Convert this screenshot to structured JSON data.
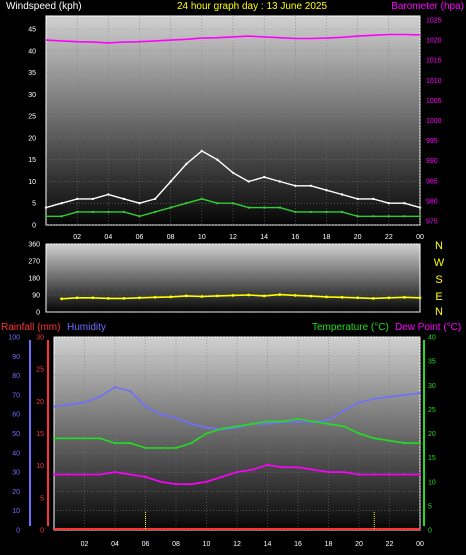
{
  "header": {
    "windspeed_label": "Windspeed (kph)",
    "title": "24 hour graph day : 13 June 2025",
    "barometer_label": "Barometer (hpa)"
  },
  "wind_dir_letters": [
    "N",
    "W",
    "S",
    "E",
    "N"
  ],
  "bottom_header": {
    "rainfall_label": "Rainfall (mm)",
    "humidity_label": "Humidity",
    "temperature_label": "Temperature (°C)",
    "dewpoint_label": "Dew Point (°C)"
  },
  "colors": {
    "windspeed": "#ffffff",
    "wind_avg": "#33cc33",
    "barometer": "#ff00ff",
    "title": "#ffff00",
    "wind_dir": "#ffff00",
    "rainfall": "#ff3333",
    "humidity": "#6f6fff",
    "temperature": "#22dd22",
    "dewpoint": "#ff00ff"
  },
  "chart_data": [
    {
      "type": "line",
      "xlabel": "",
      "x_ticks": [
        "02",
        "04",
        "06",
        "08",
        "10",
        "12",
        "14",
        "16",
        "18",
        "20",
        "22",
        "00"
      ],
      "y_left_label": "Windspeed (kph)",
      "y_left_ticks": [
        0,
        5,
        10,
        15,
        20,
        25,
        30,
        35,
        40,
        45
      ],
      "y_left_lim": [
        0,
        48
      ],
      "y_right_label": "Barometer (hpa)",
      "y_right_ticks": [
        975,
        980,
        985,
        990,
        995,
        1000,
        1005,
        1010,
        1015,
        1020,
        1025
      ],
      "y_right_lim": [
        974,
        1026
      ],
      "x_hours": [
        0,
        1,
        2,
        3,
        4,
        5,
        6,
        7,
        8,
        9,
        10,
        11,
        12,
        13,
        14,
        15,
        16,
        17,
        18,
        19,
        20,
        21,
        22,
        23,
        24
      ],
      "series": [
        {
          "name": "Windspeed (kph)",
          "axis": "left",
          "values": [
            4,
            5,
            6,
            6,
            7,
            6,
            5,
            6,
            10,
            14,
            17,
            15,
            12,
            10,
            11,
            10,
            9,
            9,
            8,
            7,
            6,
            6,
            5,
            5,
            4
          ]
        },
        {
          "name": "",
          "axis": "left",
          "values": [
            2,
            2,
            3,
            3,
            3,
            3,
            2,
            3,
            4,
            5,
            6,
            5,
            5,
            4,
            4,
            4,
            3,
            3,
            3,
            3,
            2,
            2,
            2,
            2,
            2
          ]
        },
        {
          "name": "Barometer (hpa)",
          "axis": "right",
          "values": [
            1020,
            1019.8,
            1019.6,
            1019.5,
            1019.3,
            1019.5,
            1019.6,
            1019.8,
            1020,
            1020.2,
            1020.5,
            1020.6,
            1020.8,
            1021,
            1020.8,
            1020.6,
            1020.4,
            1020.4,
            1020.5,
            1020.7,
            1021,
            1021.2,
            1021.4,
            1021.4,
            1021.3
          ]
        }
      ]
    },
    {
      "type": "scatter",
      "xlabel": "",
      "y_ticks": [
        0,
        90,
        180,
        270,
        360
      ],
      "ylim": [
        0,
        360
      ],
      "x_hours": [
        1,
        2,
        3,
        4,
        5,
        6,
        7,
        8,
        9,
        10,
        11,
        12,
        13,
        14,
        15,
        16,
        17,
        18,
        19,
        20,
        21,
        22,
        23,
        24
      ],
      "series": [
        {
          "name": "",
          "values": [
            70,
            75,
            75,
            72,
            72,
            75,
            78,
            80,
            85,
            82,
            85,
            88,
            90,
            85,
            92,
            88,
            84,
            80,
            78,
            75,
            72,
            75,
            78,
            75
          ]
        }
      ]
    },
    {
      "type": "line",
      "xlabel": "",
      "x_ticks": [
        "02",
        "04",
        "06",
        "08",
        "10",
        "12",
        "14",
        "16",
        "18",
        "20",
        "22",
        "00"
      ],
      "y_humidity_ticks": [
        0,
        10,
        20,
        30,
        40,
        50,
        60,
        70,
        80,
        90,
        100
      ],
      "y_humidity_lim": [
        0,
        100
      ],
      "y_rain_ticks": [
        0,
        5,
        10,
        15,
        20,
        25,
        30
      ],
      "y_rain_lim": [
        0,
        30
      ],
      "y_temp_ticks": [
        0,
        5,
        10,
        15,
        20,
        25,
        30,
        35,
        40
      ],
      "y_temp_lim": [
        0,
        40
      ],
      "x_hours": [
        0,
        1,
        2,
        3,
        4,
        5,
        6,
        7,
        8,
        9,
        10,
        11,
        12,
        13,
        14,
        15,
        16,
        17,
        18,
        19,
        20,
        21,
        22,
        23,
        24
      ],
      "series": [
        {
          "name": "Humidity",
          "axis": "humidity",
          "values": [
            64,
            65,
            66,
            69,
            74,
            72,
            64,
            60,
            58,
            55,
            53,
            52,
            53,
            55,
            55,
            56,
            56,
            56,
            57,
            62,
            66,
            68,
            69,
            70,
            71
          ]
        },
        {
          "name": "Rainfall (mm)",
          "axis": "rain",
          "values": [
            0,
            0,
            0,
            0,
            0,
            0,
            0,
            0,
            0,
            0,
            0,
            0,
            0,
            0,
            0,
            0,
            0,
            0,
            0,
            0,
            0,
            0,
            0,
            0,
            0
          ]
        },
        {
          "name": "Temperature (°C)",
          "axis": "temp",
          "values": [
            19,
            19,
            19,
            19,
            18,
            18,
            17,
            17,
            17,
            18,
            20,
            21,
            21.5,
            22,
            22.5,
            22.5,
            23,
            22.5,
            22,
            21.5,
            20,
            19,
            18.5,
            18,
            18
          ]
        },
        {
          "name": "Dew Point (°C)",
          "axis": "temp",
          "values": [
            11.5,
            11.5,
            11.5,
            11.5,
            12,
            11.5,
            11,
            10,
            9.5,
            9.5,
            10,
            11,
            12,
            12.5,
            13.5,
            13,
            13,
            12.5,
            12,
            12,
            11.5,
            11.5,
            11.5,
            11.5,
            11.5
          ]
        }
      ]
    }
  ]
}
